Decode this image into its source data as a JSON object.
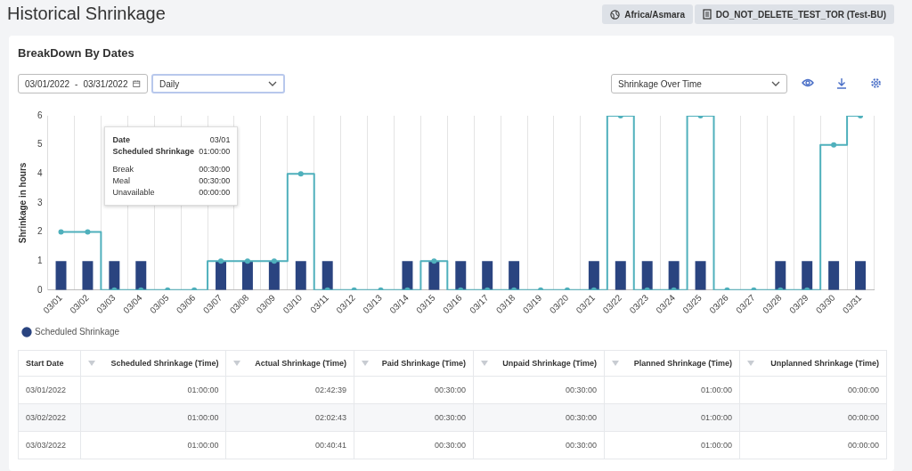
{
  "chart_data": {
    "type": "bar",
    "title": "Historical Shrinkage",
    "subtitle": "BreakDown By Dates",
    "ylabel": "Shrinkage in hours",
    "categories": [
      "03/01",
      "03/02",
      "03/03",
      "03/04",
      "03/05",
      "03/06",
      "03/07",
      "03/08",
      "03/09",
      "03/10",
      "03/11",
      "03/12",
      "03/13",
      "03/14",
      "03/15",
      "03/16",
      "03/17",
      "03/18",
      "03/19",
      "03/20",
      "03/21",
      "03/22",
      "03/23",
      "03/24",
      "03/25",
      "03/26",
      "03/27",
      "03/28",
      "03/29",
      "03/30",
      "03/31"
    ],
    "series": [
      {
        "name": "Scheduled Shrinkage",
        "color": "#2a4480",
        "values": [
          1,
          1,
          1,
          1,
          0,
          0,
          1,
          1,
          1,
          1,
          1,
          0,
          0,
          1,
          1,
          1,
          1,
          1,
          0,
          0,
          1,
          1,
          1,
          1,
          1,
          0,
          0,
          1,
          1,
          1,
          1
        ]
      },
      {
        "type": "step",
        "color": "#4fb0bc",
        "values": [
          2,
          2,
          0,
          0,
          0,
          0,
          1,
          1,
          1,
          4,
          0,
          0,
          0,
          0,
          1,
          0,
          0,
          0,
          0,
          0,
          0,
          6,
          0,
          0,
          6,
          0,
          0,
          0,
          0,
          5,
          6
        ]
      }
    ],
    "ylim": [
      0,
      6
    ],
    "yticks": [
      0,
      1,
      2,
      3,
      4,
      5,
      6
    ],
    "grid": "x",
    "legend": "bottom left",
    "marker": "circle",
    "annotations": [
      "Africa/Asmara",
      "DO_NOT_DELETE_TEST_TOR (Test-BU)",
      "03/01/2022",
      "-",
      "03/31/2022",
      "Daily",
      "Shrinkage Over Time",
      "Date",
      "03/01",
      "Scheduled Shrinkage",
      "01:00:00",
      "Break",
      "00:30:00",
      "Meal",
      "00:30:00",
      "Unavailable",
      "00:00:00",
      "Start Date",
      "Scheduled Shrinkage (Time)",
      "Actual Shrinkage (Time)",
      "Paid Shrinkage (Time)",
      "Unpaid Shrinkage (Time)",
      "Planned Shrinkage (Time)",
      "Unplanned Shrinkage (Time)",
      "03/01/2022",
      "01:00:00",
      "02:42:39",
      "00:30:00",
      "00:30:00",
      "01:00:00",
      "00:00:00",
      "03/02/2022",
      "01:00:00",
      "02:02:43",
      "00:30:00",
      "00:30:00",
      "01:00:00",
      "00:00:00",
      "03/03/2022",
      "01:00:00",
      "00:40:41",
      "00:30:00",
      "00:30:00",
      "01:00:00",
      "00:00:00"
    ]
  }
}
